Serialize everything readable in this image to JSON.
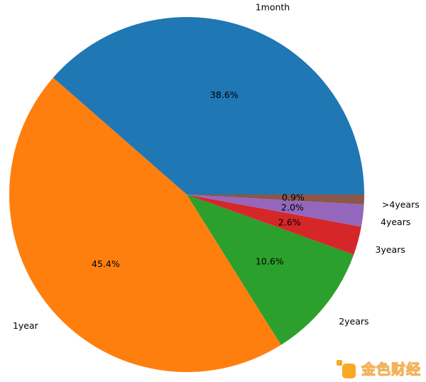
{
  "chart_data": {
    "type": "pie",
    "labels": [
      "1month",
      "1year",
      "2years",
      "3years",
      "4years",
      ">4years"
    ],
    "values": [
      38.6,
      45.4,
      10.6,
      2.6,
      2.0,
      0.9
    ],
    "pct_labels": [
      "38.6%",
      "45.4%",
      "10.6%",
      "2.6%",
      "2.0%",
      "0.9%"
    ],
    "colors": [
      "#1f77b4",
      "#ff7f0e",
      "#2ca02c",
      "#d62728",
      "#9467bd",
      "#8c564b"
    ],
    "start_angle_deg": 0,
    "direction": "counterclockwise",
    "label_distance": 1.1,
    "pct_distance": 0.6,
    "label_color": "#000000",
    "background": "#ffffff",
    "legend": "none",
    "title": ""
  },
  "watermark": {
    "text": "金色财经",
    "logo_color": "#f9a825",
    "text_stroke_color": "#f2b35c"
  }
}
